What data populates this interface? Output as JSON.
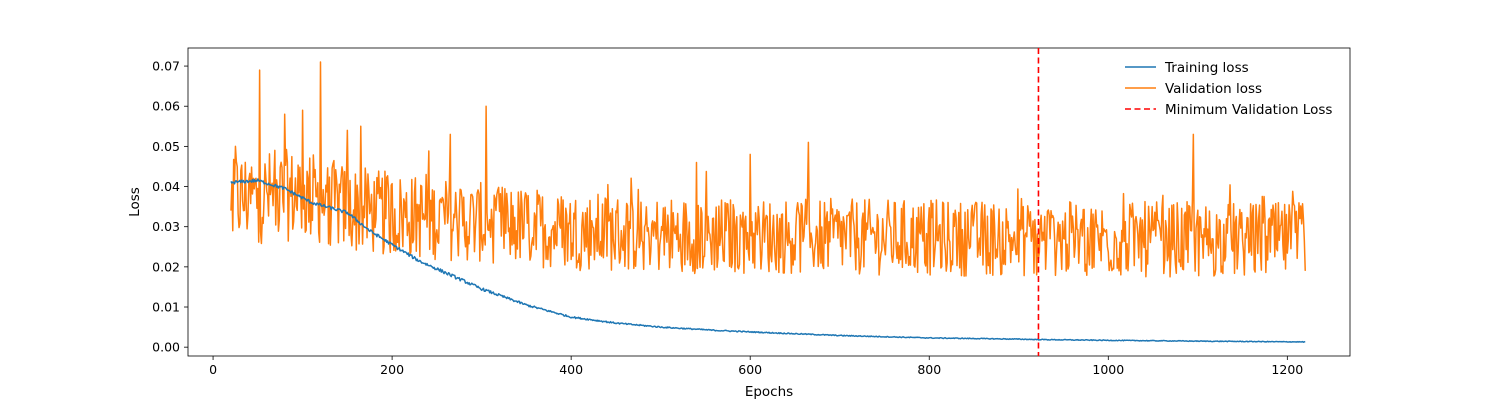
{
  "chart_data": {
    "type": "line",
    "xlabel": "Epochs",
    "ylabel": "Loss",
    "xlim": [
      -28,
      1270
    ],
    "ylim": [
      -0.0022,
      0.0745
    ],
    "x_ticks": [
      0,
      200,
      400,
      600,
      800,
      1000,
      1200
    ],
    "y_ticks": [
      0.0,
      0.01,
      0.02,
      0.03,
      0.04,
      0.05,
      0.06,
      0.07
    ],
    "y_tick_labels": [
      "0.00",
      "0.01",
      "0.02",
      "0.03",
      "0.04",
      "0.05",
      "0.06",
      "0.07"
    ],
    "legend_position": "top-right",
    "series": [
      {
        "name": "Training loss",
        "color": "#1f77b4",
        "x_start": 20,
        "x_end": 1220,
        "anchors": [
          [
            20,
            0.041
          ],
          [
            50,
            0.0415
          ],
          [
            80,
            0.0395
          ],
          [
            110,
            0.036
          ],
          [
            150,
            0.0335
          ],
          [
            175,
            0.029
          ],
          [
            200,
            0.0255
          ],
          [
            230,
            0.0215
          ],
          [
            260,
            0.0185
          ],
          [
            300,
            0.0145
          ],
          [
            350,
            0.0105
          ],
          [
            400,
            0.0075
          ],
          [
            450,
            0.006
          ],
          [
            500,
            0.005
          ],
          [
            560,
            0.0042
          ],
          [
            600,
            0.0038
          ],
          [
            700,
            0.0029
          ],
          [
            800,
            0.0023
          ],
          [
            900,
            0.002
          ],
          [
            920,
            0.0019
          ],
          [
            1000,
            0.0017
          ],
          [
            1100,
            0.0015
          ],
          [
            1220,
            0.0013
          ]
        ],
        "noise_amplitude": 0.0004
      },
      {
        "name": "Validation loss",
        "color": "#ff7f0e",
        "x_start": 20,
        "x_end": 1220,
        "baseline_anchors": [
          [
            20,
            0.037
          ],
          [
            100,
            0.038
          ],
          [
            150,
            0.0345
          ],
          [
            200,
            0.033
          ],
          [
            300,
            0.031
          ],
          [
            400,
            0.029
          ],
          [
            500,
            0.028
          ],
          [
            700,
            0.0275
          ],
          [
            900,
            0.027
          ],
          [
            1220,
            0.0265
          ]
        ],
        "amplitude_anchors": [
          [
            20,
            0.012
          ],
          [
            150,
            0.011
          ],
          [
            300,
            0.01
          ],
          [
            600,
            0.0095
          ],
          [
            1220,
            0.0095
          ]
        ],
        "peaks": [
          [
            20,
            0.034
          ],
          [
            22,
            0.029
          ],
          [
            25,
            0.05
          ],
          [
            52,
            0.069
          ],
          [
            80,
            0.058
          ],
          [
            100,
            0.059
          ],
          [
            120,
            0.071
          ],
          [
            150,
            0.054
          ],
          [
            165,
            0.055
          ],
          [
            265,
            0.053
          ],
          [
            305,
            0.06
          ],
          [
            540,
            0.046
          ],
          [
            600,
            0.048
          ],
          [
            665,
            0.051
          ],
          [
            920,
            0.018
          ],
          [
            1095,
            0.053
          ],
          [
            1220,
            0.019
          ]
        ]
      },
      {
        "name": "Minimum Validation Loss",
        "color": "#ff0000",
        "type": "vline",
        "x": 922
      }
    ]
  }
}
